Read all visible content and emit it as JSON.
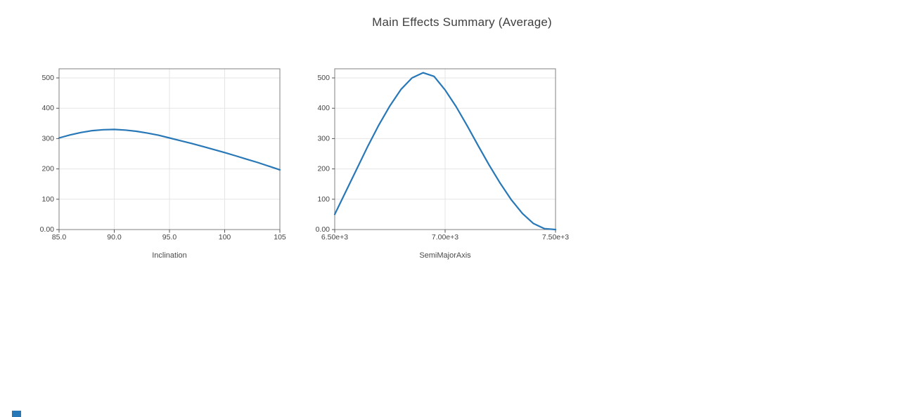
{
  "page": {
    "title": "Main Effects Summary (Average)"
  },
  "accent_color": "#2878b8",
  "chart_data": [
    {
      "type": "line",
      "title": "",
      "xlabel": "Inclination",
      "ylabel": "",
      "xlim": [
        85,
        105
      ],
      "ylim": [
        0,
        530
      ],
      "grid": true,
      "legend": "none",
      "line_color": "#2878b8",
      "xticks": [
        "85.0",
        "90.0",
        "95.0",
        "100",
        "105"
      ],
      "yticks": [
        "0.00",
        "100",
        "200",
        "300",
        "400",
        "500"
      ],
      "x": [
        85,
        86,
        87,
        88,
        89,
        90,
        91,
        92,
        93,
        94,
        95,
        96,
        97,
        98,
        99,
        100,
        101,
        102,
        103,
        104,
        105
      ],
      "y": [
        302,
        312,
        320,
        326,
        329,
        330,
        328,
        324,
        318,
        311,
        302,
        293,
        284,
        274,
        264,
        254,
        243,
        232,
        221,
        209,
        197
      ]
    },
    {
      "type": "line",
      "title": "",
      "xlabel": "SemiMajorAxis",
      "ylabel": "",
      "xlim": [
        6500,
        7500
      ],
      "ylim": [
        0,
        530
      ],
      "grid": true,
      "legend": "none",
      "line_color": "#2878b8",
      "xticks": [
        "6.50e+3",
        "7.00e+3",
        "7.50e+3"
      ],
      "yticks": [
        "0.00",
        "100",
        "200",
        "300",
        "400",
        "500"
      ],
      "x": [
        6500,
        6550,
        6600,
        6650,
        6700,
        6750,
        6800,
        6850,
        6900,
        6950,
        7000,
        7050,
        7100,
        7150,
        7200,
        7250,
        7300,
        7350,
        7400,
        7450,
        7500
      ],
      "y": [
        50,
        125,
        200,
        275,
        345,
        408,
        462,
        500,
        517,
        505,
        460,
        405,
        342,
        276,
        212,
        152,
        98,
        53,
        20,
        3,
        0
      ]
    }
  ]
}
